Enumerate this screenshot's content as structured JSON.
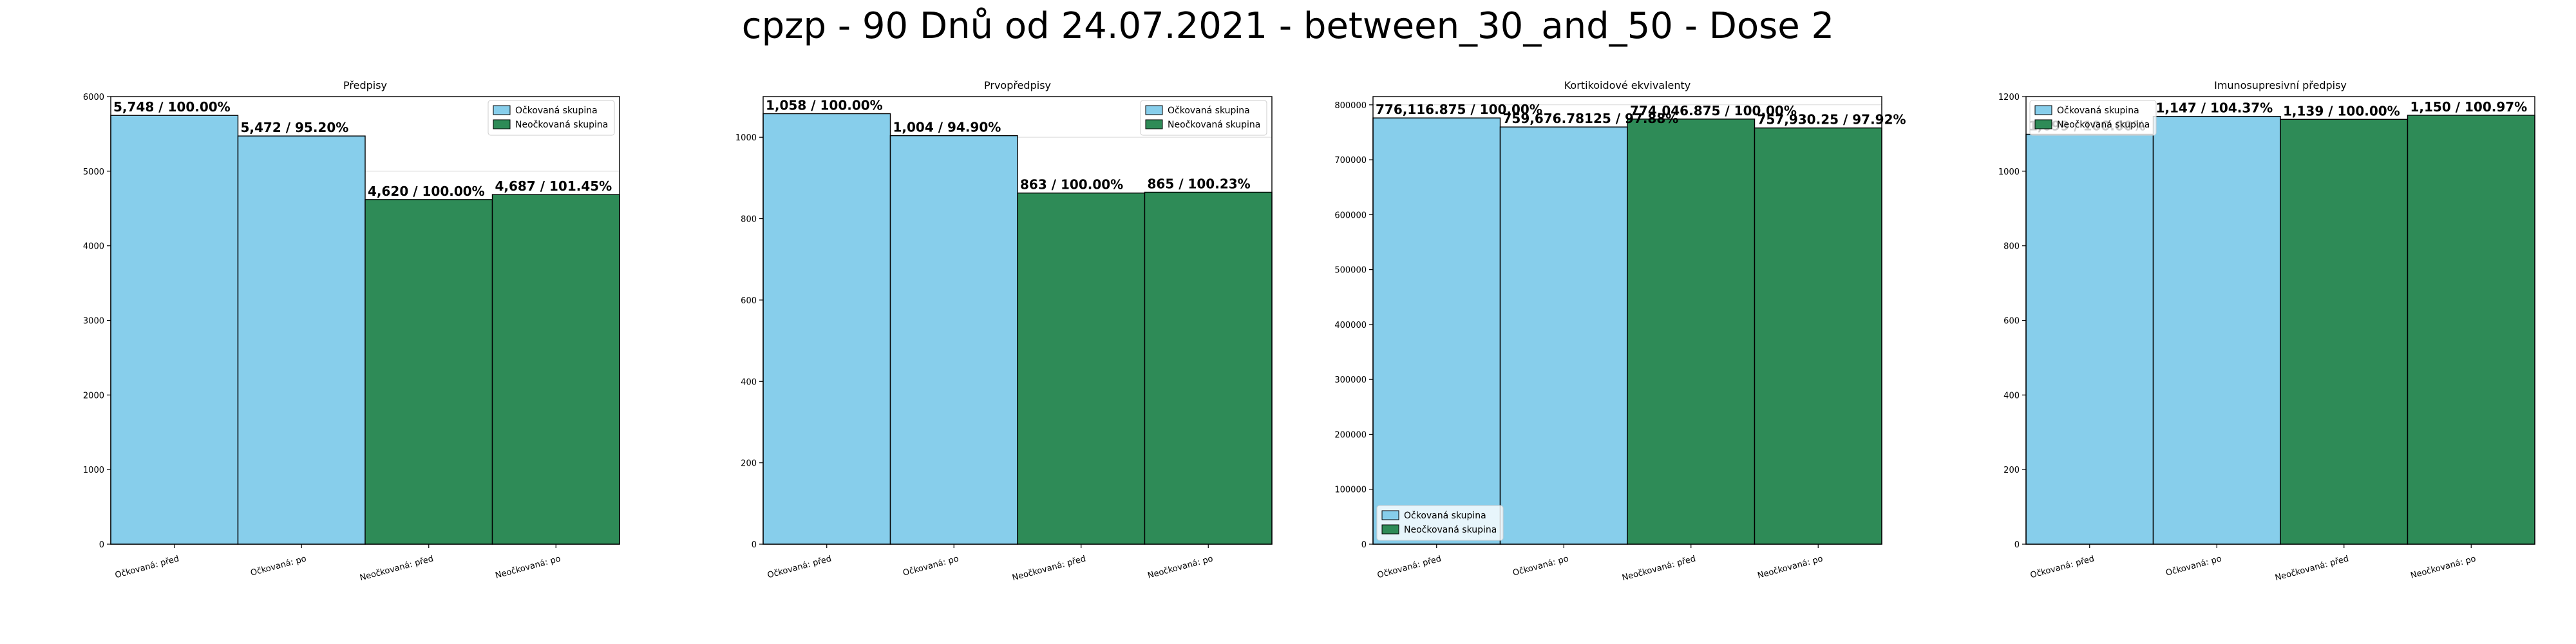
{
  "figure": {
    "title": "cpzp - 90 Dnů od 24.07.2021 - between_30_and_50 - Dose 2"
  },
  "colors": {
    "vaccinated": "#87ceeb",
    "unvaccinated": "#2e8b57",
    "bar_edge": "#000000",
    "grid": "#d9d9d9"
  },
  "chart_data": [
    {
      "type": "bar",
      "title": "Předpisy",
      "categories": [
        "Očkovaná: před",
        "Očkovaná: po",
        "Neočkovaná: před",
        "Neočkovaná: po"
      ],
      "values": [
        5748,
        5472,
        4620,
        4687
      ],
      "data_labels": [
        "5,748 / 100.00%",
        "5,472 / 95.20%",
        "4,620 / 100.00%",
        "4,687 / 101.45%"
      ],
      "bar_groups": [
        "vaccinated",
        "vaccinated",
        "unvaccinated",
        "unvaccinated"
      ],
      "legend": [
        "Očkovaná skupina",
        "Neočkovaná skupina"
      ],
      "legend_placement": "upper right",
      "ylim": [
        0,
        6000
      ],
      "yticks": [
        0,
        1000,
        2000,
        3000,
        4000,
        5000,
        6000
      ],
      "ytick_labels": [
        "0",
        "1000",
        "2000",
        "3000",
        "4000",
        "5000",
        "6000"
      ],
      "grid": true,
      "xlabel": "",
      "ylabel": ""
    },
    {
      "type": "bar",
      "title": "Prvopředpisy",
      "categories": [
        "Očkovaná: před",
        "Očkovaná: po",
        "Neočkovaná: před",
        "Neočkovaná: po"
      ],
      "values": [
        1058,
        1004,
        863,
        865
      ],
      "data_labels": [
        "1,058 / 100.00%",
        "1,004 / 94.90%",
        "863 / 100.00%",
        "865 / 100.23%"
      ],
      "bar_groups": [
        "vaccinated",
        "vaccinated",
        "unvaccinated",
        "unvaccinated"
      ],
      "legend": [
        "Očkovaná skupina",
        "Neočkovaná skupina"
      ],
      "legend_placement": "upper right",
      "ylim": [
        0,
        1100
      ],
      "yticks": [
        0,
        200,
        400,
        600,
        800,
        1000
      ],
      "ytick_labels": [
        "0",
        "200",
        "400",
        "600",
        "800",
        "1000"
      ],
      "grid": true,
      "xlabel": "",
      "ylabel": ""
    },
    {
      "type": "bar",
      "title": "Kortikoidové ekvivalenty",
      "categories": [
        "Očkovaná: před",
        "Očkovaná: po",
        "Neočkovaná: před",
        "Neočkovaná: po"
      ],
      "values": [
        776116.875,
        759676.78125,
        774046.875,
        757930.25
      ],
      "data_labels": [
        "776,116.875 / 100.00%",
        "759,676.78125 / 97.88%",
        "774,046.875 / 100.00%",
        "757,930.25 / 97.92%"
      ],
      "bar_groups": [
        "vaccinated",
        "vaccinated",
        "unvaccinated",
        "unvaccinated"
      ],
      "legend": [
        "Očkovaná skupina",
        "Neočkovaná skupina"
      ],
      "legend_placement": "lower left",
      "ylim": [
        0,
        815000
      ],
      "yticks": [
        0,
        100000,
        200000,
        300000,
        400000,
        500000,
        600000,
        700000,
        800000
      ],
      "ytick_labels": [
        "0",
        "100000",
        "200000",
        "300000",
        "400000",
        "500000",
        "600000",
        "700000",
        "800000"
      ],
      "grid": true,
      "xlabel": "",
      "ylabel": ""
    },
    {
      "type": "bar",
      "title": "Imunosupresivní předpisy",
      "categories": [
        "Očkovaná: před",
        "Očkovaná: po",
        "Neočkovaná: před",
        "Neočkovaná: po"
      ],
      "values": [
        1099,
        1147,
        1139,
        1150
      ],
      "data_labels": [
        "1,099 / 100.00%",
        "1,147 / 104.37%",
        "1,139 / 100.00%",
        "1,150 / 100.97%"
      ],
      "bar_groups": [
        "vaccinated",
        "vaccinated",
        "unvaccinated",
        "unvaccinated"
      ],
      "legend": [
        "Očkovaná skupina",
        "Neočkovaná skupina"
      ],
      "legend_placement": "upper left",
      "ylim": [
        0,
        1200
      ],
      "yticks": [
        0,
        200,
        400,
        600,
        800,
        1000,
        1200
      ],
      "ytick_labels": [
        "0",
        "200",
        "400",
        "600",
        "800",
        "1000",
        "1200"
      ],
      "grid": true,
      "xlabel": "",
      "ylabel": ""
    }
  ]
}
